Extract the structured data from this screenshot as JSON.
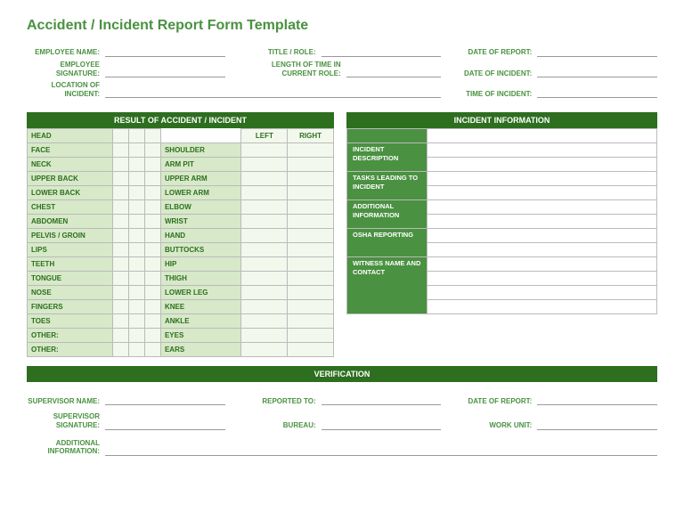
{
  "title": "Accident / Incident Report Form Template",
  "header": {
    "row1": [
      {
        "label": "EMPLOYEE NAME:"
      },
      {
        "label": "TITLE / ROLE:"
      },
      {
        "label": "DATE OF REPORT:"
      }
    ],
    "row2": [
      {
        "label": "EMPLOYEE SIGNATURE:"
      },
      {
        "label": "LENGTH OF TIME IN CURRENT ROLE:"
      },
      {
        "label": "DATE OF INCIDENT:"
      }
    ],
    "row3": [
      {
        "label": "LOCATION OF INCIDENT:"
      },
      {
        "label": ""
      },
      {
        "label": "TIME OF INCIDENT:"
      }
    ]
  },
  "result_section": {
    "title": "RESULT OF ACCIDENT / INCIDENT",
    "col_headers": {
      "left": "LEFT",
      "right": "RIGHT"
    },
    "rows": [
      {
        "a": "HEAD",
        "b": ""
      },
      {
        "a": "FACE",
        "b": "SHOULDER"
      },
      {
        "a": "NECK",
        "b": "ARM PIT"
      },
      {
        "a": "UPPER BACK",
        "b": "UPPER ARM"
      },
      {
        "a": "LOWER BACK",
        "b": "LOWER ARM"
      },
      {
        "a": "CHEST",
        "b": "ELBOW"
      },
      {
        "a": "ABDOMEN",
        "b": "WRIST"
      },
      {
        "a": "PELVIS / GROIN",
        "b": "HAND"
      },
      {
        "a": "LIPS",
        "b": "BUTTOCKS"
      },
      {
        "a": "TEETH",
        "b": "HIP"
      },
      {
        "a": "TONGUE",
        "b": "THIGH"
      },
      {
        "a": "NOSE",
        "b": "LOWER LEG"
      },
      {
        "a": "FINGERS",
        "b": "KNEE"
      },
      {
        "a": "TOES",
        "b": "ANKLE"
      },
      {
        "a": "OTHER:",
        "b": "EYES"
      },
      {
        "a": "OTHER:",
        "b": "EARS"
      }
    ]
  },
  "incident_section": {
    "title": "INCIDENT INFORMATION",
    "groups": [
      {
        "label": "INCIDENT DESCRIPTION",
        "lines": 2
      },
      {
        "label": "TASKS LEADING TO INCIDENT",
        "lines": 2
      },
      {
        "label": "ADDITIONAL INFORMATION",
        "lines": 2
      },
      {
        "label": "OSHA REPORTING",
        "lines": 2
      },
      {
        "label": "WITNESS NAME AND CONTACT",
        "lines": 4
      }
    ]
  },
  "verification": {
    "title": "VERIFICATION",
    "row1": [
      {
        "label": "SUPERVISOR NAME:"
      },
      {
        "label": "REPORTED TO:"
      },
      {
        "label": "DATE OF REPORT:"
      }
    ],
    "row2": [
      {
        "label": "SUPERVISOR SIGNATURE:"
      },
      {
        "label": "BUREAU:"
      },
      {
        "label": "WORK UNIT:"
      }
    ],
    "additional": {
      "label": "ADDITIONAL INFORMATION:"
    }
  },
  "colors": {
    "primary_green": "#4a9141",
    "dark_green": "#2d6e1f",
    "light_green": "#d7e9c8",
    "pale_green": "#f2f8ec",
    "border": "#bbbbbb",
    "underline": "#999999"
  }
}
